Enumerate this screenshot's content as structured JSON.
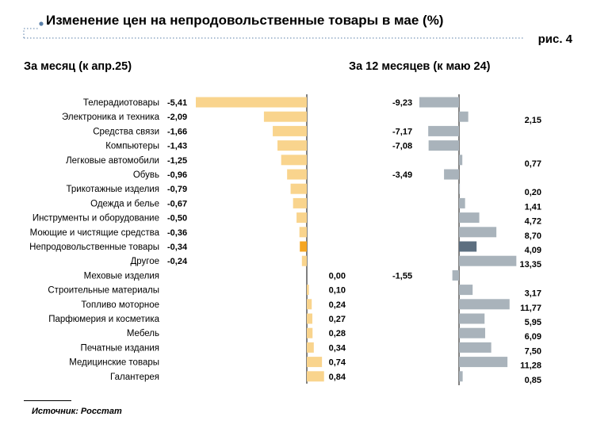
{
  "header": {
    "title": "Изменение цен на непродовольственные товары в мае (%)",
    "figure_label": "рис. 4"
  },
  "left_panel": {
    "subtitle": "За месяц (к апр.25)"
  },
  "right_panel": {
    "subtitle": "За 12 месяцев (к маю 24)"
  },
  "footer": {
    "source": "Источник: Росстат"
  },
  "colors": {
    "month_bar": "#f9d48d",
    "month_highlight": "#f5a623",
    "year_bar": "#a9b3bb",
    "year_highlight": "#5d6f80",
    "accent_dots": "#5a7fa8"
  },
  "chart_data": [
    {
      "type": "bar",
      "orientation": "horizontal",
      "title": "За месяц (к апр.25)",
      "categories": [
        "Телерадиотовары",
        "Электроника и техника",
        "Средства связи",
        "Компьютеры",
        "Легковые автомобили",
        "Обувь",
        "Трикотажные изделия",
        "Одежда и белье",
        "Инструменты и оборудование",
        "Моющие и чистящие средства",
        "Непродовольственные товары",
        "Другое",
        "Меховые изделия",
        "Строительные материалы",
        "Топливо моторное",
        "Парфюмерия и косметика",
        "Мебель",
        "Печатные издания",
        "Медицинские товары",
        "Галантерея"
      ],
      "values": [
        -5.41,
        -2.09,
        -1.66,
        -1.43,
        -1.25,
        -0.96,
        -0.79,
        -0.67,
        -0.5,
        -0.36,
        -0.34,
        -0.24,
        0.0,
        0.1,
        0.24,
        0.27,
        0.28,
        0.34,
        0.74,
        0.84
      ],
      "value_labels": [
        "-5,41",
        "-2,09",
        "-1,66",
        "-1,43",
        "-1,25",
        "-0,96",
        "-0,79",
        "-0,67",
        "-0,50",
        "-0,36",
        "-0,34",
        "-0,24",
        "0,00",
        "0,10",
        "0,24",
        "0,27",
        "0,28",
        "0,34",
        "0,74",
        "0,84"
      ],
      "highlight_category": "Непродовольственные товары"
    },
    {
      "type": "bar",
      "orientation": "horizontal",
      "title": "За 12 месяцев (к маю 24)",
      "categories": [
        "Телерадиотовары",
        "Электроника и техника",
        "Средства связи",
        "Компьютеры",
        "Легковые автомобили",
        "Обувь",
        "Трикотажные изделия",
        "Одежда и белье",
        "Инструменты и оборудование",
        "Моющие и чистящие средства",
        "Непродовольственные товары",
        "Другое",
        "Меховые изделия",
        "Строительные материалы",
        "Топливо моторное",
        "Парфюмерия и косметика",
        "Мебель",
        "Печатные издания",
        "Медицинские товары",
        "Галантерея"
      ],
      "values": [
        -9.23,
        2.15,
        -7.17,
        -7.08,
        0.77,
        -3.49,
        0.2,
        1.41,
        4.72,
        8.7,
        4.09,
        13.35,
        -1.55,
        3.17,
        11.77,
        5.95,
        6.09,
        7.5,
        11.28,
        0.85
      ],
      "value_labels": [
        "-9,23",
        "2,15",
        "-7,17",
        "-7,08",
        "0,77",
        "-3,49",
        "0,20",
        "1,41",
        "4,72",
        "8,70",
        "4,09",
        "13,35",
        "-1,55",
        "3,17",
        "11,77",
        "5,95",
        "6,09",
        "7,50",
        "11,28",
        "0,85"
      ],
      "highlight_category": "Непродовольственные товары"
    }
  ]
}
